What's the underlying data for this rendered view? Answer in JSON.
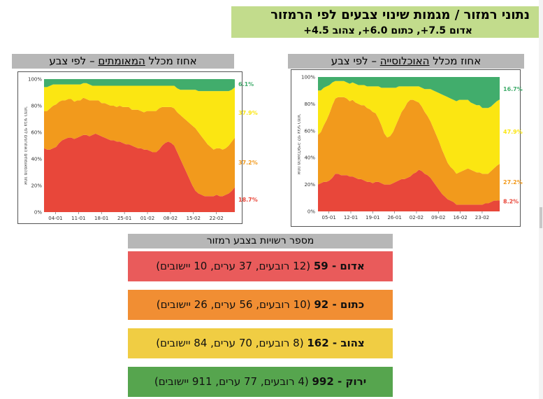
{
  "title": {
    "main": "נתוני רמזור / מגמות שינוי צבעים לפי הרמזור",
    "sub": "אדום 7.5+, כתום 6.0+, צהוב 4.5+"
  },
  "charts": {
    "confirmed": {
      "header_pre": "אחוז מכלל ",
      "header_u": "המאומתים",
      "header_post": " – לפי צבע",
      "ylabel": "אחוז מהמאומתים האחרונים לפי צבעי רמזור"
    },
    "population": {
      "header_pre": "אחוז מכלל ",
      "header_u": "האוכלוסייה",
      "header_post": " – לפי צבע",
      "ylabel": "אחוז מהאוכלוסייה לפי צבעי רמזור"
    }
  },
  "colors": {
    "red": "#e8473a",
    "orange": "#f29a1c",
    "yellow": "#fbe612",
    "green": "#41ad6c",
    "title_bg": "#c2dc8c",
    "header_bg": "#b7b7b7",
    "row_red": "#e95b5b",
    "row_orange": "#f18e33",
    "row_yellow": "#f0cd43",
    "row_green": "#56a54e"
  },
  "chart_data": [
    {
      "type": "area",
      "stacked": true,
      "y_axis": {
        "min": 0,
        "max": 100,
        "ticks": [
          "0%",
          "20%",
          "40%",
          "60%",
          "80%",
          "100%"
        ]
      },
      "x_tick_labels": [
        "04-01",
        "11-01",
        "18-01",
        "25-01",
        "01-02",
        "08-02",
        "15-02",
        "22-02"
      ],
      "x_index": [
        0,
        1,
        2,
        3,
        4,
        5,
        6,
        7,
        8,
        9,
        10,
        11,
        12,
        13,
        14,
        15,
        16,
        17,
        18,
        19,
        20,
        21,
        22,
        23,
        24,
        25,
        26,
        27,
        28,
        29,
        30,
        31,
        32,
        33,
        34,
        35,
        36,
        37,
        38,
        39,
        40,
        41,
        42,
        43,
        44,
        45,
        46,
        47,
        48,
        49,
        50,
        51,
        52,
        53,
        54,
        55,
        56,
        57,
        58,
        59,
        60,
        61,
        62,
        63
      ],
      "series": [
        {
          "color": "red",
          "values": [
            48,
            47,
            47,
            48,
            49,
            52,
            54,
            55,
            56,
            56,
            55,
            56,
            57,
            58,
            58,
            57,
            58,
            59,
            58,
            57,
            56,
            55,
            54,
            54,
            53,
            53,
            52,
            51,
            51,
            50,
            49,
            48,
            48,
            47,
            47,
            46,
            45,
            45,
            47,
            50,
            52,
            53,
            52,
            50,
            45,
            40,
            35,
            30,
            25,
            20,
            16,
            14,
            13,
            12,
            12,
            12,
            12,
            13,
            12,
            12,
            13,
            14,
            16,
            18.7
          ]
        },
        {
          "color": "orange",
          "values": [
            28,
            29,
            31,
            32,
            32,
            31,
            30,
            29,
            29,
            29,
            28,
            28,
            27,
            28,
            27,
            27,
            26,
            25,
            26,
            25,
            26,
            26,
            26,
            26,
            26,
            27,
            27,
            28,
            28,
            27,
            28,
            29,
            28,
            28,
            29,
            30,
            31,
            31,
            31,
            29,
            27,
            26,
            27,
            28,
            30,
            33,
            36,
            39,
            42,
            45,
            47,
            46,
            44,
            42,
            39,
            37,
            35,
            35,
            36,
            35,
            35,
            36,
            37,
            37.2
          ]
        },
        {
          "color": "yellow",
          "values": [
            18,
            18,
            17,
            16,
            15,
            13,
            12,
            12,
            11,
            11,
            13,
            12,
            12,
            11,
            12,
            12,
            11,
            11,
            11,
            13,
            13,
            14,
            15,
            15,
            16,
            15,
            16,
            16,
            16,
            18,
            18,
            18,
            19,
            20,
            19,
            19,
            19,
            19,
            17,
            16,
            16,
            16,
            16,
            17,
            18,
            19,
            21,
            23,
            25,
            27,
            29,
            31,
            34,
            37,
            40,
            42,
            44,
            43,
            43,
            44,
            43,
            41,
            39,
            37.9
          ]
        },
        {
          "color": "green",
          "values": [
            6,
            6,
            5,
            4,
            4,
            4,
            4,
            4,
            4,
            4,
            4,
            4,
            4,
            3,
            3,
            4,
            5,
            5,
            5,
            5,
            5,
            5,
            5,
            5,
            5,
            5,
            5,
            5,
            5,
            5,
            5,
            5,
            5,
            5,
            5,
            5,
            5,
            5,
            5,
            5,
            5,
            5,
            5,
            5,
            7,
            8,
            8,
            8,
            8,
            8,
            8,
            9,
            9,
            9,
            9,
            9,
            9,
            9,
            9,
            9,
            9,
            9,
            8,
            6.1
          ]
        }
      ],
      "end_labels": [
        "18.7%",
        "37.2%",
        "37.9%",
        "6.1%"
      ]
    },
    {
      "type": "area",
      "stacked": true,
      "y_axis": {
        "min": 0,
        "max": 100,
        "ticks": [
          "0%",
          "20%",
          "40%",
          "60%",
          "80%",
          "100%"
        ]
      },
      "x_tick_labels": [
        "05-01",
        "12-01",
        "19-01",
        "26-01",
        "02-02",
        "09-02",
        "16-02",
        "23-02"
      ],
      "x_index": [
        0,
        1,
        2,
        3,
        4,
        5,
        6,
        7,
        8,
        9,
        10,
        11,
        12,
        13,
        14,
        15,
        16,
        17,
        18,
        19,
        20,
        21,
        22,
        23,
        24,
        25,
        26,
        27,
        28,
        29,
        30,
        31,
        32,
        33,
        34,
        35,
        36,
        37,
        38,
        39,
        40,
        41,
        42,
        43,
        44,
        45,
        46,
        47,
        48,
        49,
        50,
        51,
        52,
        53,
        54,
        55,
        56,
        57,
        58,
        59,
        60,
        61,
        62,
        63
      ],
      "series": [
        {
          "color": "red",
          "values": [
            20,
            21,
            22,
            22,
            23,
            25,
            28,
            28,
            27,
            27,
            27,
            26,
            26,
            25,
            24,
            24,
            23,
            22,
            22,
            21,
            22,
            22,
            21,
            20,
            20,
            20,
            21,
            22,
            23,
            24,
            24,
            25,
            26,
            28,
            29,
            31,
            30,
            28,
            27,
            25,
            22,
            19,
            16,
            13,
            11,
            9,
            8,
            7,
            5,
            5,
            5,
            5,
            5,
            5,
            5,
            5,
            5,
            5,
            6,
            6,
            7,
            8,
            8,
            8.2
          ]
        },
        {
          "color": "orange",
          "values": [
            37,
            38,
            42,
            46,
            50,
            54,
            56,
            57,
            58,
            58,
            57,
            56,
            57,
            56,
            56,
            55,
            56,
            55,
            54,
            53,
            51,
            47,
            43,
            38,
            35,
            36,
            38,
            42,
            46,
            50,
            53,
            56,
            57,
            55,
            53,
            50,
            48,
            46,
            44,
            42,
            40,
            38,
            36,
            33,
            30,
            27,
            25,
            24,
            23,
            24,
            25,
            26,
            27,
            26,
            25,
            24,
            24,
            23,
            22,
            22,
            23,
            24,
            26,
            27.2
          ]
        },
        {
          "color": "yellow",
          "values": [
            33,
            31,
            28,
            25,
            21,
            17,
            13,
            12,
            12,
            12,
            12,
            13,
            13,
            14,
            14,
            15,
            15,
            16,
            17,
            19,
            20,
            24,
            28,
            34,
            37,
            36,
            33,
            28,
            24,
            19,
            16,
            12,
            10,
            10,
            11,
            12,
            14,
            17,
            20,
            24,
            28,
            32,
            36,
            41,
            45,
            49,
            51,
            52,
            54,
            54,
            53,
            52,
            51,
            50,
            50,
            50,
            50,
            49,
            49,
            49,
            48,
            48,
            48,
            47.9
          ]
        },
        {
          "color": "green",
          "values": [
            10,
            10,
            8,
            7,
            6,
            4,
            3,
            3,
            3,
            3,
            4,
            5,
            4,
            5,
            6,
            6,
            6,
            7,
            7,
            7,
            7,
            7,
            8,
            8,
            8,
            8,
            8,
            8,
            7,
            7,
            7,
            7,
            7,
            7,
            7,
            7,
            8,
            9,
            9,
            9,
            10,
            11,
            12,
            13,
            14,
            15,
            16,
            17,
            18,
            17,
            17,
            17,
            17,
            19,
            20,
            21,
            21,
            23,
            23,
            23,
            22,
            20,
            18,
            16.7
          ]
        }
      ],
      "end_labels": [
        "8.2%",
        "27.2%",
        "47.9%",
        "16.7%"
      ]
    }
  ],
  "authorities": {
    "header": "מספר רשויות בצבע רמזור",
    "rows": [
      {
        "color_key": "row_red",
        "name": "אדום",
        "count": "59",
        "sep": " - ",
        "details": "(12 רובעים, 37 ערים, 10 יישובים)"
      },
      {
        "color_key": "row_orange",
        "name": "כתום",
        "count": "92",
        "sep": " - ",
        "details": "(10 רובעים, 56 ערים, 26 יישובים)"
      },
      {
        "color_key": "row_yellow",
        "name": "צהוב",
        "count": "162",
        "sep": " - ",
        "details": "(8 רובעים, 70 ערים, 84 יישובים)"
      },
      {
        "color_key": "row_green",
        "name": "ירוק",
        "count": "992",
        "sep": " - ",
        "details": "(4 רובעים, 77 ערים, 911 יישובים)"
      }
    ]
  }
}
